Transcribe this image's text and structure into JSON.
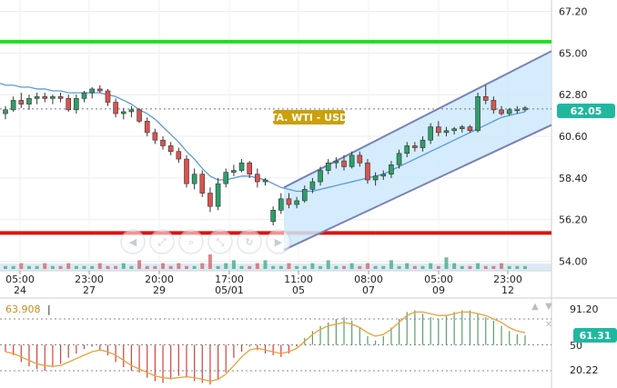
{
  "price_axis": {
    "ticks": [
      "67.20",
      "65.00",
      "62.80",
      "60.60",
      "58.40",
      "56.20",
      "54.00"
    ],
    "tick_values": [
      67.2,
      65.0,
      62.8,
      60.6,
      58.4,
      56.2,
      54.0
    ],
    "current_price": "62.05",
    "current_price_value": 62.05,
    "badge_color": "#21b79f"
  },
  "instrument_label": "TA. WTI - USD",
  "time_axis": {
    "ticks": [
      {
        "time": "05:00",
        "date": "24"
      },
      {
        "time": "23:00",
        "date": "27"
      },
      {
        "time": "20:00",
        "date": "29"
      },
      {
        "time": "17:00",
        "date": "05/01"
      },
      {
        "time": "11:00",
        "date": "05"
      },
      {
        "time": "08:00",
        "date": "07"
      },
      {
        "time": "05:00",
        "date": "09"
      },
      {
        "time": "23:00",
        "date": "12"
      }
    ]
  },
  "levels": {
    "resistance": {
      "value": 65.6,
      "color": "#22dd22"
    },
    "support": {
      "value": 55.5,
      "color": "#dd1111"
    }
  },
  "oscillator": {
    "value_label": "63.908",
    "separator": "|",
    "axis_ticks": [
      "91.20",
      "50",
      "20.22"
    ],
    "current": "61.31",
    "current_color": "#21b79f"
  },
  "toolbar": {
    "icons": [
      "arrow-left-icon",
      "zoom-out-icon",
      "search-icon",
      "zoom-in-icon",
      "reset-icon",
      "arrow-right-icon"
    ]
  },
  "panel_controls": [
    "arrow-up-icon",
    "arrow-down-icon",
    "close-icon"
  ],
  "chart_data": [
    {
      "type": "candlestick",
      "title": "",
      "series_name": "TA. WTI - USD",
      "ylim": [
        53.5,
        67.8
      ],
      "candles": [
        [
          61.8,
          62.2,
          61.5,
          62.0
        ],
        [
          62.0,
          62.7,
          61.9,
          62.5
        ],
        [
          62.5,
          62.9,
          62.1,
          62.3
        ],
        [
          62.3,
          62.8,
          62.0,
          62.6
        ],
        [
          62.6,
          62.9,
          62.3,
          62.7
        ],
        [
          62.7,
          62.9,
          62.4,
          62.6
        ],
        [
          62.6,
          62.8,
          62.3,
          62.7
        ],
        [
          62.7,
          62.9,
          62.4,
          62.6
        ],
        [
          62.6,
          62.8,
          61.9,
          62.0
        ],
        [
          62.0,
          62.8,
          61.8,
          62.6
        ],
        [
          62.6,
          63.0,
          62.4,
          62.9
        ],
        [
          62.9,
          63.2,
          62.6,
          63.1
        ],
        [
          63.1,
          63.3,
          62.9,
          63.0
        ],
        [
          63.0,
          63.1,
          62.2,
          62.4
        ],
        [
          62.4,
          62.6,
          61.6,
          61.8
        ],
        [
          61.8,
          62.1,
          61.5,
          61.9
        ],
        [
          61.9,
          62.2,
          61.6,
          62.0
        ],
        [
          62.0,
          62.1,
          61.3,
          61.4
        ],
        [
          61.4,
          61.6,
          60.6,
          60.8
        ],
        [
          60.8,
          61.0,
          60.2,
          60.4
        ],
        [
          60.4,
          60.6,
          59.9,
          60.1
        ],
        [
          60.1,
          60.3,
          59.6,
          59.8
        ],
        [
          59.8,
          60.0,
          59.2,
          59.4
        ],
        [
          59.4,
          59.6,
          57.9,
          58.1
        ],
        [
          58.1,
          58.9,
          57.8,
          58.6
        ],
        [
          58.6,
          58.8,
          57.4,
          57.6
        ],
        [
          57.6,
          57.9,
          56.6,
          56.9
        ],
        [
          56.9,
          58.4,
          56.7,
          58.1
        ],
        [
          58.1,
          58.9,
          57.9,
          58.7
        ],
        [
          58.7,
          59.1,
          58.5,
          58.8
        ],
        [
          58.8,
          59.4,
          58.7,
          59.2
        ],
        [
          59.2,
          59.3,
          58.4,
          58.6
        ],
        [
          58.6,
          58.9,
          57.9,
          58.2
        ],
        [
          58.2,
          58.4,
          58.0,
          58.3
        ],
        [
          56.1,
          56.9,
          55.9,
          56.7
        ],
        [
          56.7,
          57.6,
          56.5,
          57.3
        ],
        [
          57.3,
          57.6,
          56.8,
          57.0
        ],
        [
          57.0,
          57.4,
          56.8,
          57.2
        ],
        [
          57.2,
          58.0,
          57.1,
          57.8
        ],
        [
          57.8,
          58.4,
          57.6,
          58.2
        ],
        [
          58.2,
          59.0,
          58.0,
          58.8
        ],
        [
          58.8,
          59.4,
          58.6,
          59.2
        ],
        [
          59.2,
          59.5,
          58.9,
          59.3
        ],
        [
          59.3,
          59.6,
          58.8,
          59.0
        ],
        [
          59.0,
          59.8,
          58.9,
          59.6
        ],
        [
          59.6,
          59.8,
          59.0,
          59.2
        ],
        [
          59.2,
          59.4,
          58.1,
          58.3
        ],
        [
          58.3,
          58.7,
          58.0,
          58.5
        ],
        [
          58.5,
          58.8,
          58.3,
          58.6
        ],
        [
          58.6,
          59.3,
          58.4,
          59.1
        ],
        [
          59.1,
          59.9,
          58.9,
          59.7
        ],
        [
          59.7,
          60.3,
          59.5,
          60.1
        ],
        [
          60.1,
          60.3,
          59.8,
          60.0
        ],
        [
          60.0,
          60.6,
          59.8,
          60.4
        ],
        [
          60.4,
          61.3,
          60.2,
          61.1
        ],
        [
          61.1,
          61.4,
          60.6,
          60.8
        ],
        [
          60.8,
          61.1,
          60.6,
          60.9
        ],
        [
          60.9,
          61.1,
          60.7,
          61.0
        ],
        [
          61.0,
          61.2,
          60.8,
          61.1
        ],
        [
          61.1,
          61.2,
          60.8,
          60.9
        ],
        [
          60.9,
          62.9,
          60.8,
          62.7
        ],
        [
          62.7,
          63.3,
          62.3,
          62.5
        ],
        [
          62.5,
          62.7,
          61.8,
          62.0
        ],
        [
          62.0,
          62.2,
          61.7,
          61.8
        ],
        [
          61.8,
          62.1,
          61.7,
          62.0
        ],
        [
          62.0,
          62.2,
          61.8,
          62.0
        ],
        [
          62.0,
          62.2,
          61.9,
          62.1
        ]
      ],
      "moving_average": [
        63.3,
        63.3,
        63.2,
        63.2,
        63.1,
        63.1,
        63.0,
        63.0,
        62.9,
        62.9,
        62.9,
        62.9,
        62.9,
        62.8,
        62.7,
        62.5,
        62.3,
        62.0,
        61.8,
        61.5,
        61.1,
        60.7,
        60.3,
        59.8,
        59.4,
        58.9,
        58.5,
        58.3,
        58.3,
        58.4,
        58.5,
        58.5,
        58.4,
        58.3,
        58.1,
        57.9,
        57.8,
        57.7,
        57.7,
        57.7,
        57.8,
        57.9,
        58.0,
        58.1,
        58.2,
        58.3,
        58.4,
        58.5,
        58.6,
        58.8,
        59.0,
        59.2,
        59.4,
        59.6,
        59.8,
        60.0,
        60.2,
        60.4,
        60.6,
        60.8,
        61.0,
        61.2,
        61.4,
        61.6,
        61.7,
        61.8,
        61.9
      ],
      "channel": {
        "upper": [
          [
            56.2,
            57.9
          ],
          [
            67.0,
            65.0
          ]
        ],
        "lower": [
          [
            54.6,
            55.4
          ],
          [
            61.0,
            61.2
          ]
        ]
      },
      "volume": [
        1,
        1,
        2,
        1,
        1,
        2,
        1,
        1,
        2,
        1,
        1,
        1,
        2,
        1,
        1,
        2,
        1,
        3,
        1,
        1,
        2,
        1,
        2,
        1,
        1,
        2,
        5,
        1,
        2,
        3,
        1,
        1,
        2,
        3,
        1,
        1,
        2,
        1,
        1,
        2,
        1,
        3,
        1,
        1,
        2,
        1,
        2,
        1,
        1,
        3,
        1,
        2,
        1,
        1,
        2,
        1,
        4,
        2,
        1,
        1,
        2,
        1,
        1,
        2,
        1,
        1,
        1
      ]
    },
    {
      "type": "bar",
      "title": "",
      "series_name": "",
      "ylim": [
        0,
        100
      ],
      "levels": [
        80,
        50,
        20
      ],
      "histogram": [
        42,
        38,
        30,
        25,
        22,
        20,
        24,
        28,
        35,
        40,
        45,
        48,
        44,
        38,
        30,
        24,
        20,
        18,
        12,
        8,
        6,
        10,
        14,
        12,
        8,
        6,
        4,
        10,
        18,
        35,
        42,
        48,
        44,
        40,
        38,
        36,
        40,
        48,
        58,
        66,
        72,
        76,
        80,
        82,
        78,
        70,
        60,
        55,
        60,
        70,
        80,
        88,
        90,
        86,
        82,
        80,
        84,
        88,
        90,
        90,
        86,
        82,
        78,
        72,
        66,
        62,
        61
      ],
      "signal": [
        42,
        40,
        36,
        32,
        28,
        26,
        25,
        26,
        30,
        34,
        38,
        42,
        44,
        42,
        38,
        32,
        26,
        22,
        18,
        14,
        12,
        11,
        12,
        13,
        12,
        10,
        8,
        10,
        16,
        26,
        36,
        44,
        46,
        44,
        42,
        40,
        42,
        46,
        54,
        62,
        68,
        72,
        74,
        76,
        74,
        70,
        64,
        60,
        62,
        68,
        76,
        84,
        88,
        88,
        86,
        84,
        84,
        86,
        88,
        88,
        86,
        84,
        80,
        76,
        70,
        66,
        63.9
      ]
    }
  ]
}
